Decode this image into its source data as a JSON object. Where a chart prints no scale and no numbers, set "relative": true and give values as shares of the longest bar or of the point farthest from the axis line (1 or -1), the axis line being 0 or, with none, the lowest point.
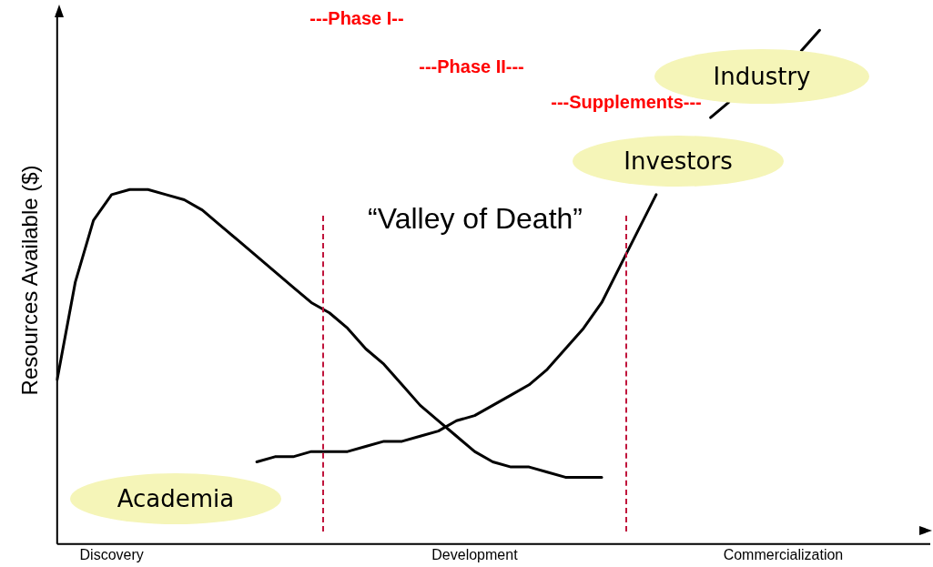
{
  "chart_data": {
    "type": "line",
    "relative": true,
    "ylabel": "Resources Available ($)",
    "categories": [
      null,
      null,
      null,
      "Discovery",
      null,
      null,
      null,
      null,
      null,
      null,
      null,
      null,
      null,
      null,
      null,
      null,
      null,
      null,
      null,
      null,
      null,
      null,
      null,
      "Development",
      null,
      null,
      null,
      null,
      null,
      null,
      null,
      null,
      null,
      null,
      null,
      null,
      null,
      null,
      null,
      null,
      "Commercialization",
      null,
      null,
      null,
      null,
      null,
      null,
      null,
      null
    ],
    "series": [
      {
        "color": "#000000",
        "values": [
          0.32,
          0.51,
          0.63,
          0.68,
          0.69,
          0.69,
          0.68,
          0.67,
          0.65,
          0.62,
          0.59,
          0.56,
          0.53,
          0.5,
          0.47,
          0.45,
          0.42,
          0.38,
          0.35,
          0.31,
          0.27,
          0.24,
          0.21,
          0.18,
          0.16,
          0.15,
          0.15,
          0.14,
          0.13,
          0.13,
          0.13,
          null,
          null,
          null,
          null,
          null,
          null,
          null,
          null,
          null,
          null,
          null,
          null,
          null,
          null,
          null,
          null,
          null,
          null
        ]
      },
      {
        "color": "#000000",
        "values": [
          null,
          null,
          null,
          null,
          null,
          null,
          null,
          null,
          null,
          null,
          null,
          0.16,
          0.17,
          0.17,
          0.18,
          0.18,
          0.18,
          0.19,
          0.2,
          0.2,
          0.21,
          0.22,
          0.24,
          0.25,
          0.27,
          0.29,
          0.31,
          0.34,
          0.38,
          0.42,
          0.47,
          0.54,
          0.61,
          0.68,
          null,
          null,
          0.83,
          0.86,
          null,
          null,
          null,
          0.96,
          1,
          null,
          null,
          null,
          null,
          null,
          null
        ]
      }
    ],
    "annotations": [
      "---Phase I--",
      "---Phase II---",
      "---Supplements---",
      "Industry",
      "Investors",
      "“Valley of Death”",
      "Academia"
    ],
    "grid": false,
    "legend": false,
    "marker": "none",
    "line_style": "solid"
  }
}
